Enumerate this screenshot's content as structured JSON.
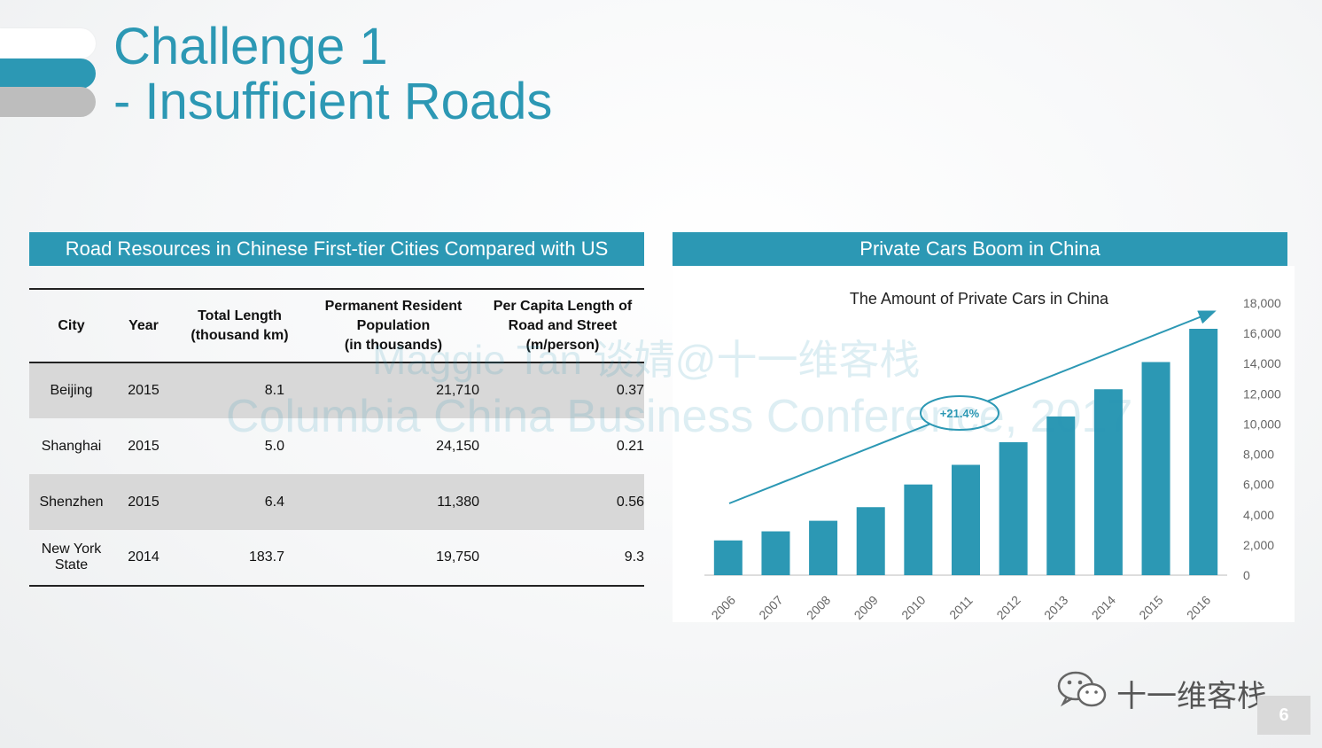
{
  "title": {
    "line1": "Challenge 1",
    "line2": "- Insufficient Roads"
  },
  "colors": {
    "accent": "#2c98b4",
    "bar_grey": "#bdbdbd",
    "shade": "#d8d8d8"
  },
  "table_panel": {
    "header": "Road Resources in Chinese First-tier Cities Compared with US",
    "columns": [
      [
        "City"
      ],
      [
        "Year"
      ],
      [
        "Total Length",
        "(thousand km)"
      ],
      [
        "Permanent Resident",
        "Population",
        "(in thousands)"
      ],
      [
        "Per Capita Length of",
        "Road and Street",
        "(m/person)"
      ]
    ],
    "rows": [
      {
        "city": [
          "Beijing"
        ],
        "year": "2015",
        "length": "8.1",
        "population": "21,710",
        "per_capita": "0.37"
      },
      {
        "city": [
          "Shanghai"
        ],
        "year": "2015",
        "length": "5.0",
        "population": "24,150",
        "per_capita": "0.21"
      },
      {
        "city": [
          "Shenzhen"
        ],
        "year": "2015",
        "length": "6.4",
        "population": "11,380",
        "per_capita": "0.56"
      },
      {
        "city": [
          "New York",
          "State"
        ],
        "year": "2014",
        "length": "183.7",
        "population": "19,750",
        "per_capita": "9.3"
      }
    ]
  },
  "chart_panel": {
    "header": "Private Cars Boom in China"
  },
  "chart_data": {
    "type": "bar",
    "title": "The Amount of Private Cars in China",
    "categories": [
      "2006",
      "2007",
      "2008",
      "2009",
      "2010",
      "2011",
      "2012",
      "2013",
      "2014",
      "2015",
      "2016"
    ],
    "values": [
      2300,
      2900,
      3600,
      4500,
      6000,
      7300,
      8800,
      10500,
      12300,
      14100,
      16300
    ],
    "ylim": [
      0,
      18000
    ],
    "yticks": [
      "0",
      "2,000",
      "4,000",
      "6,000",
      "8,000",
      "10,000",
      "12,000",
      "14,000",
      "16,000",
      "18,000"
    ],
    "y_axis_side": "right",
    "grid": false,
    "annotation": {
      "label": "+21.4%",
      "shape": "trend-arrow"
    },
    "bar_color": "#2c98b4"
  },
  "watermark": {
    "line1": "Maggie Tan 谈婧@十一维客栈",
    "line2": "Columbia China Business Conference, 2017"
  },
  "footer": {
    "brand": "十一维客栈",
    "page_number": "6",
    "logo_icon": "wechat-icon"
  }
}
